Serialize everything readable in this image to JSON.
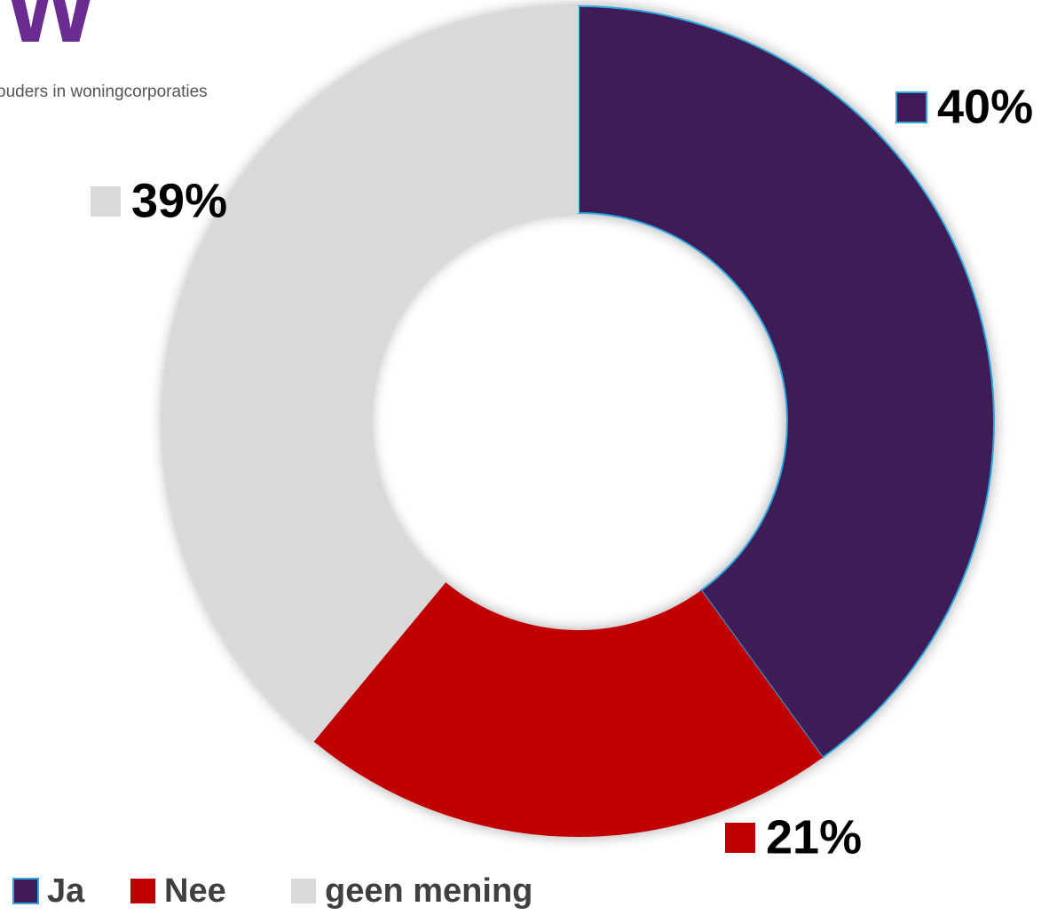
{
  "logo": {
    "mark": "TW",
    "tagline": "ouders in woningcorporaties"
  },
  "chart_data": {
    "type": "pie",
    "donut": true,
    "categories": [
      "Ja",
      "Nee",
      "geen mening"
    ],
    "values": [
      40,
      21,
      39
    ],
    "value_labels": [
      "40%",
      "21%",
      "39%"
    ],
    "colors": [
      "#3f1a57",
      "#c00000",
      "#d9d9d9"
    ],
    "legend": "bottom"
  }
}
